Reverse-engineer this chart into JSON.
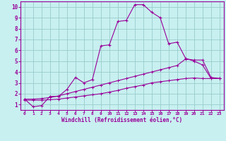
{
  "title": "",
  "xlabel": "Windchill (Refroidissement éolien,°C)",
  "ylabel": "",
  "bg_color": "#c8f0f0",
  "line_color": "#990099",
  "grid_color": "#99cccc",
  "xlim": [
    -0.5,
    23.5
  ],
  "ylim": [
    0.5,
    10.5
  ],
  "xticks": [
    0,
    1,
    2,
    3,
    4,
    5,
    6,
    7,
    8,
    9,
    10,
    11,
    12,
    13,
    14,
    15,
    16,
    17,
    18,
    19,
    20,
    21,
    22,
    23
  ],
  "yticks": [
    1,
    2,
    3,
    4,
    5,
    6,
    7,
    8,
    9,
    10
  ],
  "line1_x": [
    0,
    1,
    2,
    3,
    4,
    5,
    6,
    7,
    8,
    9,
    10,
    11,
    12,
    13,
    14,
    15,
    16,
    17,
    18,
    19,
    20,
    21,
    22,
    23
  ],
  "line1_y": [
    1.5,
    0.8,
    0.9,
    1.75,
    1.75,
    2.4,
    3.5,
    3.0,
    3.3,
    6.4,
    6.5,
    8.65,
    8.75,
    10.2,
    10.2,
    9.5,
    9.0,
    6.6,
    6.75,
    5.25,
    5.0,
    4.65,
    3.4,
    3.4
  ],
  "line2_x": [
    0,
    1,
    2,
    3,
    4,
    5,
    6,
    7,
    8,
    9,
    10,
    11,
    12,
    13,
    14,
    15,
    16,
    17,
    18,
    19,
    20,
    21,
    22,
    23
  ],
  "line2_y": [
    1.5,
    1.5,
    1.55,
    1.65,
    1.8,
    2.0,
    2.2,
    2.4,
    2.6,
    2.8,
    3.0,
    3.2,
    3.4,
    3.6,
    3.8,
    4.0,
    4.2,
    4.4,
    4.6,
    5.2,
    5.1,
    5.1,
    3.5,
    3.4
  ],
  "line3_x": [
    0,
    1,
    2,
    3,
    4,
    5,
    6,
    7,
    8,
    9,
    10,
    11,
    12,
    13,
    14,
    15,
    16,
    17,
    18,
    19,
    20,
    21,
    22,
    23
  ],
  "line3_y": [
    1.4,
    1.4,
    1.4,
    1.45,
    1.5,
    1.6,
    1.7,
    1.8,
    1.9,
    2.0,
    2.15,
    2.3,
    2.5,
    2.65,
    2.8,
    3.0,
    3.1,
    3.2,
    3.3,
    3.4,
    3.45,
    3.4,
    3.4,
    3.4
  ]
}
